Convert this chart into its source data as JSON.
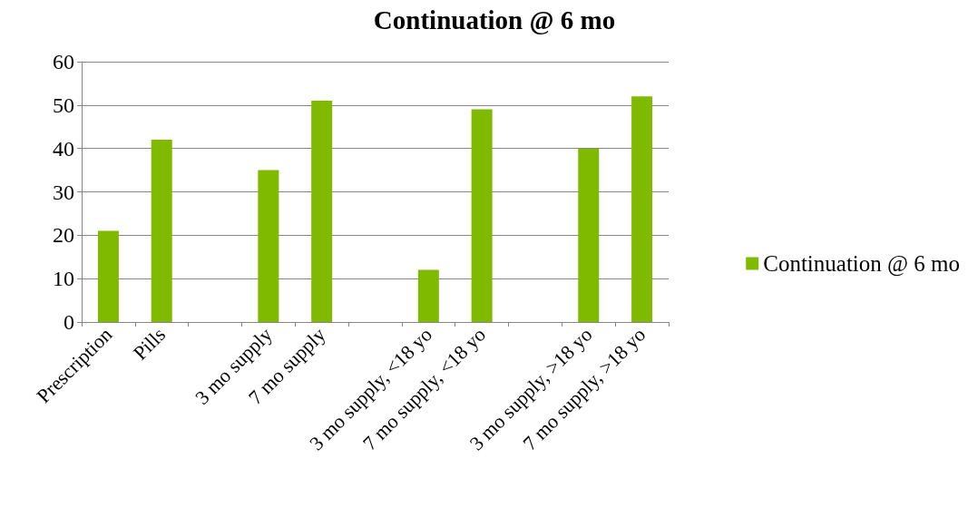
{
  "chart_data": {
    "type": "bar",
    "title": "Continuation @ 6 mo",
    "categories": [
      "Prescription",
      "Pills",
      null,
      "3 mo supply",
      "7 mo supply",
      null,
      "3 mo supply, <18 yo",
      "7 mo supply, <18 yo",
      null,
      "3 mo supply, >18 yo",
      "7 mo supply, >18 yo"
    ],
    "series": [
      {
        "name": "Continuation @ 6 mo",
        "color": "#7fba00",
        "values": [
          21,
          42,
          null,
          35,
          51,
          null,
          12,
          49,
          null,
          40,
          52
        ]
      }
    ],
    "ylim": [
      0,
      60
    ],
    "yticks": [
      0,
      10,
      20,
      30,
      40,
      50,
      60
    ],
    "grid": "y",
    "legend": "right"
  }
}
